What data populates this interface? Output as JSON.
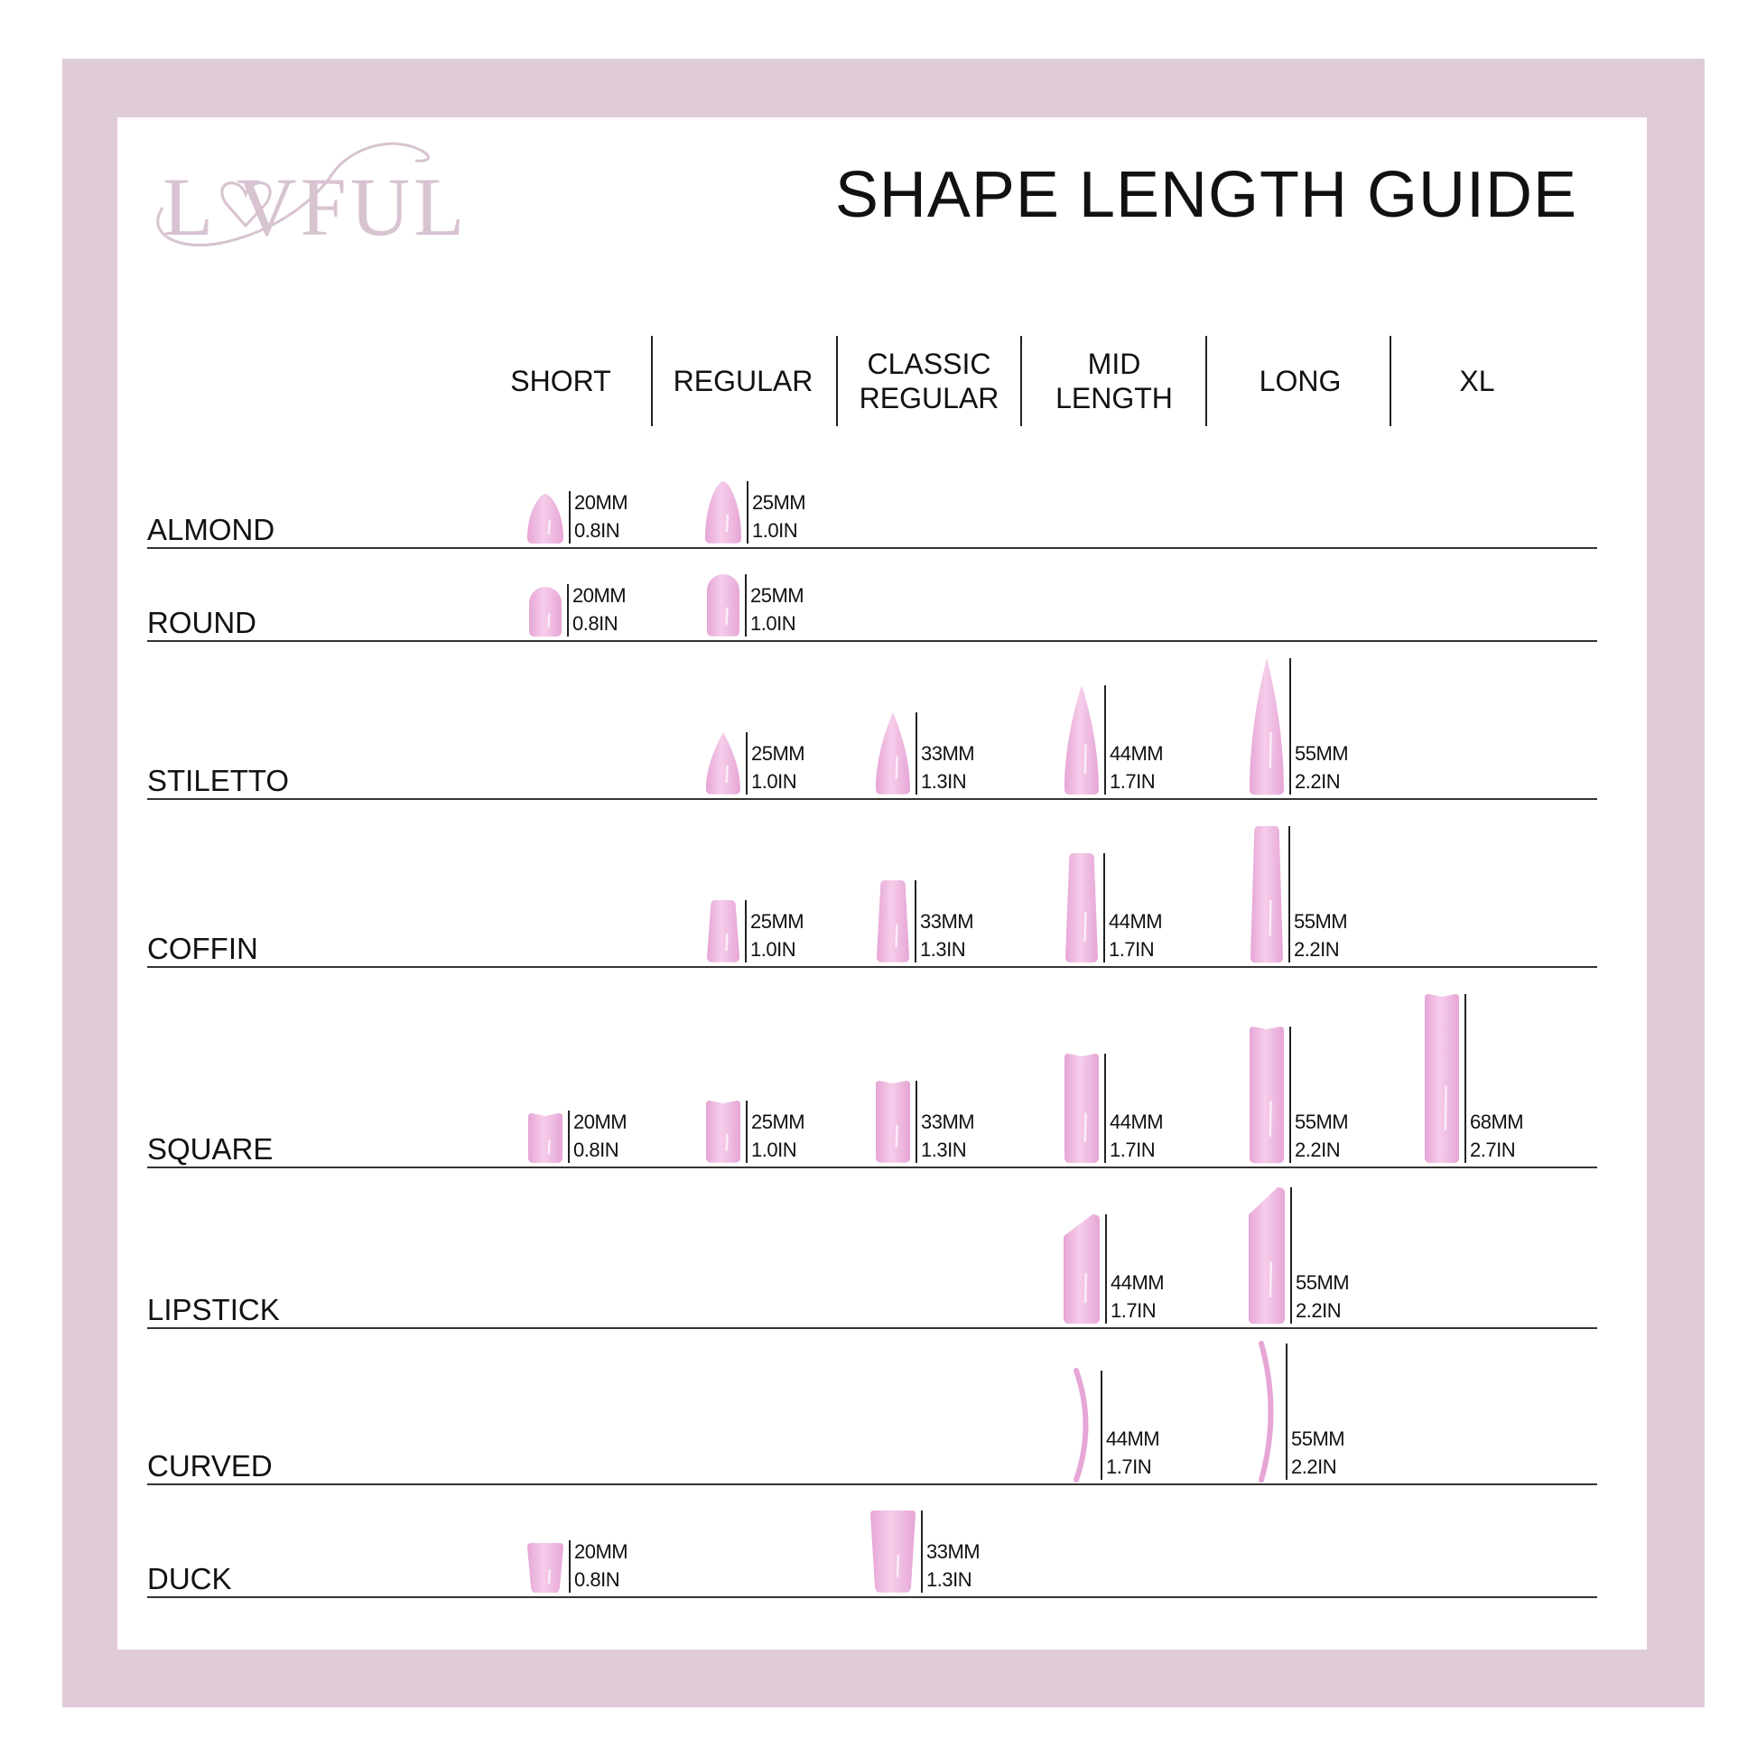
{
  "brand": {
    "logo_text": "LOVFUL"
  },
  "title": "SHAPE LENGTH GUIDE",
  "colors": {
    "frame": "#e0ccd9",
    "logo": "#d8c3d1",
    "nail_light": "#f6cdea",
    "nail_dark": "#e6a6d6"
  },
  "columns": [
    "SHORT",
    "REGULAR",
    "CLASSIC\nREGULAR",
    "MID\nLENGTH",
    "LONG",
    "XL"
  ],
  "rows": [
    {
      "shape": "ALMOND",
      "cells": [
        {
          "col": 0,
          "mm": "20MM",
          "in": "0.8IN"
        },
        {
          "col": 1,
          "mm": "25MM",
          "in": "1.0IN"
        }
      ]
    },
    {
      "shape": "ROUND",
      "cells": [
        {
          "col": 0,
          "mm": "20MM",
          "in": "0.8IN"
        },
        {
          "col": 1,
          "mm": "25MM",
          "in": "1.0IN"
        }
      ]
    },
    {
      "shape": "STILETTO",
      "cells": [
        {
          "col": 1,
          "mm": "25MM",
          "in": "1.0IN"
        },
        {
          "col": 2,
          "mm": "33MM",
          "in": "1.3IN"
        },
        {
          "col": 3,
          "mm": "44MM",
          "in": "1.7IN"
        },
        {
          "col": 4,
          "mm": "55MM",
          "in": "2.2IN"
        }
      ]
    },
    {
      "shape": "COFFIN",
      "cells": [
        {
          "col": 1,
          "mm": "25MM",
          "in": "1.0IN"
        },
        {
          "col": 2,
          "mm": "33MM",
          "in": "1.3IN"
        },
        {
          "col": 3,
          "mm": "44MM",
          "in": "1.7IN"
        },
        {
          "col": 4,
          "mm": "55MM",
          "in": "2.2IN"
        }
      ]
    },
    {
      "shape": "SQUARE",
      "cells": [
        {
          "col": 0,
          "mm": "20MM",
          "in": "0.8IN"
        },
        {
          "col": 1,
          "mm": "25MM",
          "in": "1.0IN"
        },
        {
          "col": 2,
          "mm": "33MM",
          "in": "1.3IN"
        },
        {
          "col": 3,
          "mm": "44MM",
          "in": "1.7IN"
        },
        {
          "col": 4,
          "mm": "55MM",
          "in": "2.2IN"
        },
        {
          "col": 5,
          "mm": "68MM",
          "in": "2.7IN"
        }
      ]
    },
    {
      "shape": "LIPSTICK",
      "cells": [
        {
          "col": 3,
          "mm": "44MM",
          "in": "1.7IN"
        },
        {
          "col": 4,
          "mm": "55MM",
          "in": "2.2IN"
        }
      ]
    },
    {
      "shape": "CURVED",
      "cells": [
        {
          "col": 3,
          "mm": "44MM",
          "in": "1.7IN"
        },
        {
          "col": 4,
          "mm": "55MM",
          "in": "2.2IN"
        }
      ]
    },
    {
      "shape": "DUCK",
      "cells": [
        {
          "col": 0,
          "mm": "20MM",
          "in": "0.8IN"
        },
        {
          "col": 2,
          "mm": "33MM",
          "in": "1.3IN"
        }
      ]
    }
  ]
}
